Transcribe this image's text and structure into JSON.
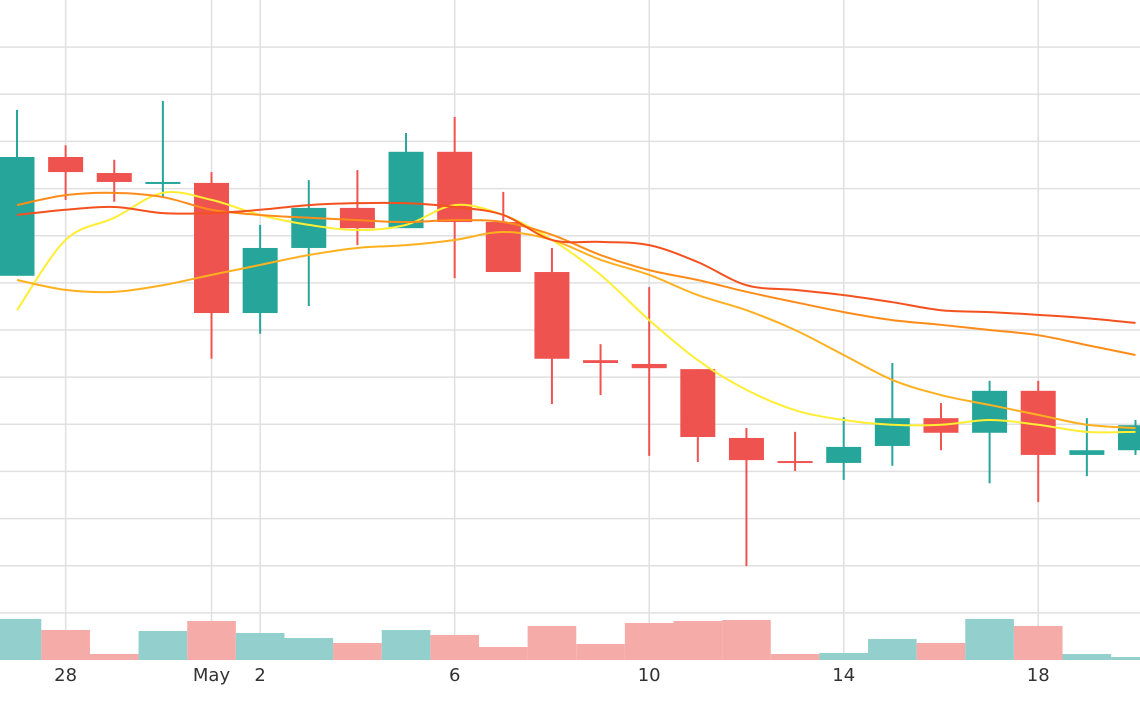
{
  "chart_data": {
    "type": "candlestick",
    "categories": [
      null,
      "28",
      null,
      null,
      "May",
      "2",
      null,
      null,
      null,
      "6",
      null,
      null,
      null,
      "10",
      null,
      null,
      null,
      "14",
      null,
      null,
      null,
      "18",
      null,
      null
    ],
    "open": [
      8.15,
      10.67,
      10.33,
      10.12,
      10.12,
      7.36,
      8.74,
      9.59,
      9.16,
      10.78,
      9.29,
      8.23,
      6.36,
      6.28,
      6.17,
      4.71,
      4.22,
      4.18,
      4.54,
      5.13,
      4.82,
      5.71,
      4.35,
      4.45
    ],
    "high": [
      11.67,
      10.92,
      10.61,
      11.86,
      10.35,
      9.23,
      10.18,
      10.39,
      11.18,
      11.52,
      9.93,
      8.74,
      6.7,
      7.91,
      6.17,
      4.92,
      4.84,
      5.15,
      6.3,
      5.45,
      5.92,
      5.92,
      5.13,
      5.09
    ],
    "low": [
      8.15,
      9.76,
      9.72,
      9.82,
      6.39,
      6.92,
      7.51,
      8.8,
      9.16,
      8.1,
      8.23,
      5.43,
      5.62,
      4.33,
      4.2,
      1.99,
      4.01,
      3.82,
      4.12,
      4.45,
      3.75,
      3.35,
      3.9,
      4.35
    ],
    "close": [
      10.67,
      10.35,
      10.14,
      10.14,
      7.36,
      8.74,
      9.59,
      9.16,
      10.78,
      9.29,
      8.23,
      6.39,
      6.3,
      6.19,
      4.73,
      4.24,
      4.18,
      4.52,
      5.13,
      4.82,
      5.71,
      4.35,
      4.45,
      4.98
    ],
    "up_color": "#26a69a",
    "down_color": "#ef5350",
    "volume": [
      41,
      30,
      6,
      29,
      39,
      27,
      22,
      17,
      30,
      25,
      13,
      34,
      16,
      37,
      39,
      40,
      6,
      7,
      21,
      17,
      41,
      34,
      6,
      3
    ],
    "volume_up_color": "#92cfcd",
    "volume_down_color": "#f5aba7",
    "volume_lim": [
      0,
      100
    ],
    "series": [
      {
        "color": "#ffee33",
        "values": [
          7.42,
          8.91,
          9.38,
          9.91,
          9.76,
          9.44,
          9.23,
          9.12,
          9.23,
          9.65,
          9.44,
          8.91,
          8.17,
          7.21,
          6.36,
          5.73,
          5.3,
          5.09,
          4.99,
          4.99,
          5.09,
          4.99,
          4.84,
          4.84
        ]
      },
      {
        "color": "#ffb020",
        "values": [
          8.06,
          7.85,
          7.81,
          7.95,
          8.17,
          8.38,
          8.59,
          8.74,
          8.8,
          8.91,
          9.08,
          8.91,
          8.49,
          8.17,
          7.74,
          7.42,
          7.0,
          6.47,
          5.94,
          5.62,
          5.41,
          5.2,
          4.99,
          4.92
        ]
      },
      {
        "color": "#ff8c1a",
        "values": [
          9.65,
          9.86,
          9.91,
          9.82,
          9.55,
          9.44,
          9.38,
          9.33,
          9.29,
          9.33,
          9.29,
          9.02,
          8.59,
          8.27,
          8.06,
          7.81,
          7.59,
          7.38,
          7.21,
          7.11,
          7.0,
          6.89,
          6.68,
          6.47
        ]
      },
      {
        "color": "#f4511e",
        "values": [
          9.44,
          9.55,
          9.61,
          9.48,
          9.48,
          9.55,
          9.65,
          9.69,
          9.69,
          9.61,
          9.44,
          8.91,
          8.87,
          8.8,
          8.44,
          7.95,
          7.85,
          7.74,
          7.59,
          7.42,
          7.38,
          7.32,
          7.25,
          7.15
        ]
      }
    ],
    "ylim": [
      0,
      14
    ],
    "yticks": [
      1,
      2,
      3,
      4,
      5,
      6,
      7,
      8,
      9,
      10,
      11,
      12,
      13
    ],
    "grid": true
  }
}
